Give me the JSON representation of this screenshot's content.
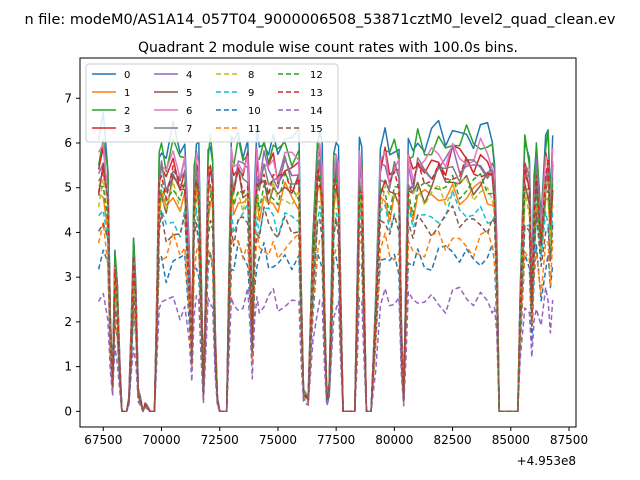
{
  "figure": {
    "suptitle": "n file: modeM0/AS1A14_057T04_9000006508_53871cztM0_level2_quad_clean.ev",
    "title": "Quadrant 2 module wise count rates with 100.0s bins."
  },
  "chart_data": {
    "type": "line",
    "title": "Quadrant 2 module wise count rates with 100.0s bins.",
    "xlabel": "",
    "ylabel": "",
    "x_offset_text": "+4.953e8",
    "xlim": [
      66500,
      87800
    ],
    "ylim": [
      -0.35,
      7.9
    ],
    "xticks": [
      67500,
      70000,
      72500,
      75000,
      77500,
      80000,
      82500,
      85000,
      87500
    ],
    "xtick_labels": [
      "67500",
      "70000",
      "72500",
      "75000",
      "77500",
      "80000",
      "82500",
      "85000",
      "87500"
    ],
    "yticks": [
      0,
      1,
      2,
      3,
      4,
      5,
      6,
      7
    ],
    "ytick_labels": [
      "0",
      "1",
      "2",
      "3",
      "4",
      "5",
      "6",
      "7"
    ],
    "grid": false,
    "legend": {
      "placement": "upper-left",
      "columns": 4
    },
    "series": [
      {
        "name": "0",
        "color": "#1f77b4",
        "dash": "solid",
        "base": 6.4
      },
      {
        "name": "1",
        "color": "#ff7f0e",
        "dash": "solid",
        "base": 5.0
      },
      {
        "name": "2",
        "color": "#2ca02c",
        "dash": "solid",
        "base": 6.2
      },
      {
        "name": "3",
        "color": "#d62728",
        "dash": "solid",
        "base": 5.8
      },
      {
        "name": "4",
        "color": "#9467bd",
        "dash": "solid",
        "base": 5.7
      },
      {
        "name": "5",
        "color": "#8c564b",
        "dash": "solid",
        "base": 5.3
      },
      {
        "name": "6",
        "color": "#e377c2",
        "dash": "solid",
        "base": 5.9
      },
      {
        "name": "7",
        "color": "#7f7f7f",
        "dash": "solid",
        "base": 5.6
      },
      {
        "name": "8",
        "color": "#bcbd22",
        "dash": "dashed",
        "base": 5.1
      },
      {
        "name": "9",
        "color": "#17becf",
        "dash": "dashed",
        "base": 4.6
      },
      {
        "name": "10",
        "color": "#1f77b4",
        "dash": "dashed",
        "base": 3.6
      },
      {
        "name": "11",
        "color": "#ff7f0e",
        "dash": "dashed",
        "base": 3.9
      },
      {
        "name": "12",
        "color": "#2ca02c",
        "dash": "dashed",
        "base": 5.2
      },
      {
        "name": "13",
        "color": "#d62728",
        "dash": "dashed",
        "base": 5.5
      },
      {
        "name": "14",
        "color": "#9467bd",
        "dash": "dashed",
        "base": 2.6
      },
      {
        "name": "15",
        "color": "#8c564b",
        "dash": "dashed",
        "base": 4.4
      }
    ],
    "profile": {
      "x": [
        67300,
        67500,
        67700,
        67800,
        67900,
        68000,
        68100,
        68200,
        68300,
        68400,
        68500,
        68600,
        68700,
        68800,
        68900,
        69000,
        69100,
        69200,
        69300,
        69400,
        69500,
        69600,
        69700,
        69800,
        69900,
        70000,
        70200,
        70500,
        70800,
        71000,
        71200,
        71300,
        71400,
        71500,
        71600,
        71700,
        71800,
        71900,
        72000,
        72100,
        72200,
        72300,
        72400,
        72500,
        72600,
        72700,
        72800,
        72900,
        73000,
        73100,
        73300,
        73500,
        73700,
        73800,
        73900,
        74000,
        74100,
        74200,
        74400,
        74600,
        74800,
        75000,
        75300,
        75600,
        75900,
        76000,
        76100,
        76300,
        76500,
        76700,
        76800,
        76900,
        77000,
        77100,
        77200,
        77300,
        77400,
        77500,
        77600,
        77700,
        77800,
        78000,
        78200,
        78300,
        78400,
        78500,
        78600,
        78700,
        78800,
        78900,
        79000,
        79200,
        79400,
        79600,
        79800,
        80000,
        80200,
        80300,
        80400,
        80500,
        80600,
        80800,
        81000,
        81300,
        81600,
        81900,
        82200,
        82500,
        82800,
        83100,
        83400,
        83700,
        84000,
        84200,
        84300,
        84400,
        84500,
        84600,
        84800,
        85000,
        85100,
        85200,
        85300,
        85400,
        85600,
        85800,
        85900,
        86000,
        86100,
        86300,
        86500,
        86600,
        86700,
        86800
      ],
      "scale": [
        0.93,
        1.0,
        0.85,
        0.35,
        0.12,
        0.55,
        0.45,
        0.2,
        0.0,
        0.0,
        0.0,
        0.05,
        0.3,
        0.6,
        0.45,
        0.08,
        0.05,
        0.0,
        0.03,
        0.02,
        0.0,
        0.0,
        0.0,
        0.4,
        0.9,
        0.95,
        0.88,
        0.97,
        0.9,
        0.95,
        0.55,
        0.25,
        0.85,
        0.95,
        0.9,
        0.5,
        0.08,
        0.45,
        0.9,
        0.95,
        0.9,
        0.3,
        0.05,
        0.0,
        0.0,
        0.0,
        0.0,
        0.5,
        0.95,
        0.9,
        0.97,
        0.92,
        0.95,
        0.7,
        0.3,
        0.8,
        0.95,
        0.9,
        0.97,
        0.92,
        0.95,
        0.9,
        0.97,
        0.93,
        0.95,
        0.45,
        0.08,
        0.05,
        0.6,
        0.95,
        0.97,
        0.9,
        0.4,
        0.05,
        0.1,
        0.45,
        0.9,
        0.95,
        0.9,
        0.4,
        0.0,
        0.0,
        0.0,
        0.0,
        0.45,
        0.95,
        0.9,
        0.45,
        0.0,
        0.0,
        0.0,
        0.4,
        0.93,
        0.97,
        0.9,
        0.95,
        0.92,
        0.3,
        0.05,
        0.5,
        0.95,
        0.9,
        0.97,
        0.93,
        0.95,
        0.98,
        0.95,
        1.0,
        0.96,
        0.98,
        0.95,
        0.98,
        0.96,
        0.95,
        0.9,
        0.6,
        0.0,
        0.0,
        0.0,
        0.0,
        0.0,
        0.0,
        0.0,
        0.4,
        0.95,
        0.9,
        0.45,
        0.8,
        0.95,
        0.7,
        0.95,
        0.97,
        0.75,
        0.95,
        0.9,
        0.3
      ]
    }
  }
}
